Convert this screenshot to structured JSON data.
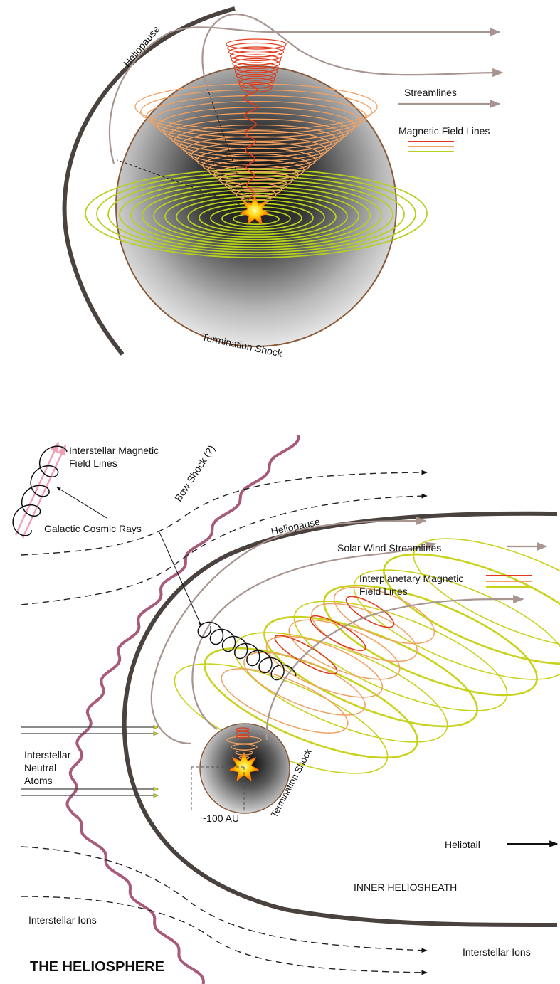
{
  "top_diagram": {
    "heliopause": "Heliopause",
    "termination_shock": "Termination Shock",
    "legend": {
      "streamlines": "Streamlines",
      "magnetic_field_lines": "Magnetic Field Lines"
    }
  },
  "bottom_diagram": {
    "title": "THE HELIOSPHERE",
    "interstellar_magnetic_field_lines": [
      "Interstellar Magnetic",
      "Field Lines"
    ],
    "galactic_cosmic_rays": "Galactic Cosmic Rays",
    "bow_shock": "Bow Shock (?)",
    "heliopause": "Heliopause",
    "solar_wind_streamlines": "Solar Wind Streamlines",
    "interplanetary_magnetic_field_lines": [
      "Interplanetary Magnetic",
      "Field Lines"
    ],
    "interstellar_neutral_atoms": [
      "Interstellar",
      "Neutral",
      "Atoms"
    ],
    "termination_shock": "Termination Shock",
    "distance": "~100 AU",
    "heliotail": "Heliotail",
    "inner_heliosheath": "INNER HELIOSHEATH",
    "interstellar_ions_left": "Interstellar Ions",
    "interstellar_ions_right": "Interstellar Ions"
  },
  "colors": {
    "heliopause": "#4a423f",
    "streamline": "#a89590",
    "bow_shock": "#a85a7a",
    "field_red": "#e03a1a",
    "field_orange": "#f0a060",
    "field_yellow": "#c8d21a",
    "field_green": "#b4d21e",
    "termination_shock": "#8a5a3a"
  }
}
